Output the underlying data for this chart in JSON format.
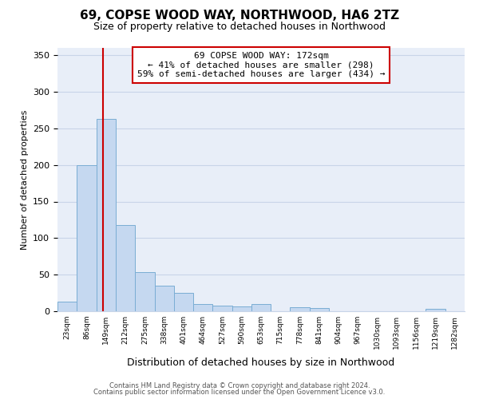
{
  "title": "69, COPSE WOOD WAY, NORTHWOOD, HA6 2TZ",
  "subtitle": "Size of property relative to detached houses in Northwood",
  "xlabel": "Distribution of detached houses by size in Northwood",
  "ylabel": "Number of detached properties",
  "bin_labels": [
    "23sqm",
    "86sqm",
    "149sqm",
    "212sqm",
    "275sqm",
    "338sqm",
    "401sqm",
    "464sqm",
    "527sqm",
    "590sqm",
    "653sqm",
    "715sqm",
    "778sqm",
    "841sqm",
    "904sqm",
    "967sqm",
    "1030sqm",
    "1093sqm",
    "1156sqm",
    "1219sqm",
    "1282sqm"
  ],
  "bar_heights": [
    13,
    200,
    263,
    118,
    54,
    35,
    25,
    10,
    8,
    7,
    10,
    0,
    5,
    4,
    0,
    0,
    0,
    0,
    0,
    3,
    0
  ],
  "bar_color": "#c5d8f0",
  "bar_edge_color": "#7aadd4",
  "vline_x_index": 2,
  "vline_color": "#cc0000",
  "ylim": [
    0,
    360
  ],
  "yticks": [
    0,
    50,
    100,
    150,
    200,
    250,
    300,
    350
  ],
  "annotation_title": "69 COPSE WOOD WAY: 172sqm",
  "annotation_line1": "← 41% of detached houses are smaller (298)",
  "annotation_line2": "59% of semi-detached houses are larger (434) →",
  "annotation_box_color": "#ffffff",
  "annotation_box_edge": "#cc0000",
  "footnote1": "Contains HM Land Registry data © Crown copyright and database right 2024.",
  "footnote2": "Contains public sector information licensed under the Open Government Licence v3.0.",
  "bin_edges": [
    23,
    86,
    149,
    212,
    275,
    338,
    401,
    464,
    527,
    590,
    653,
    715,
    778,
    841,
    904,
    967,
    1030,
    1093,
    1156,
    1219,
    1282
  ],
  "bin_width": 63,
  "bg_color": "#e8eef8",
  "grid_color": "#c8d4e8"
}
